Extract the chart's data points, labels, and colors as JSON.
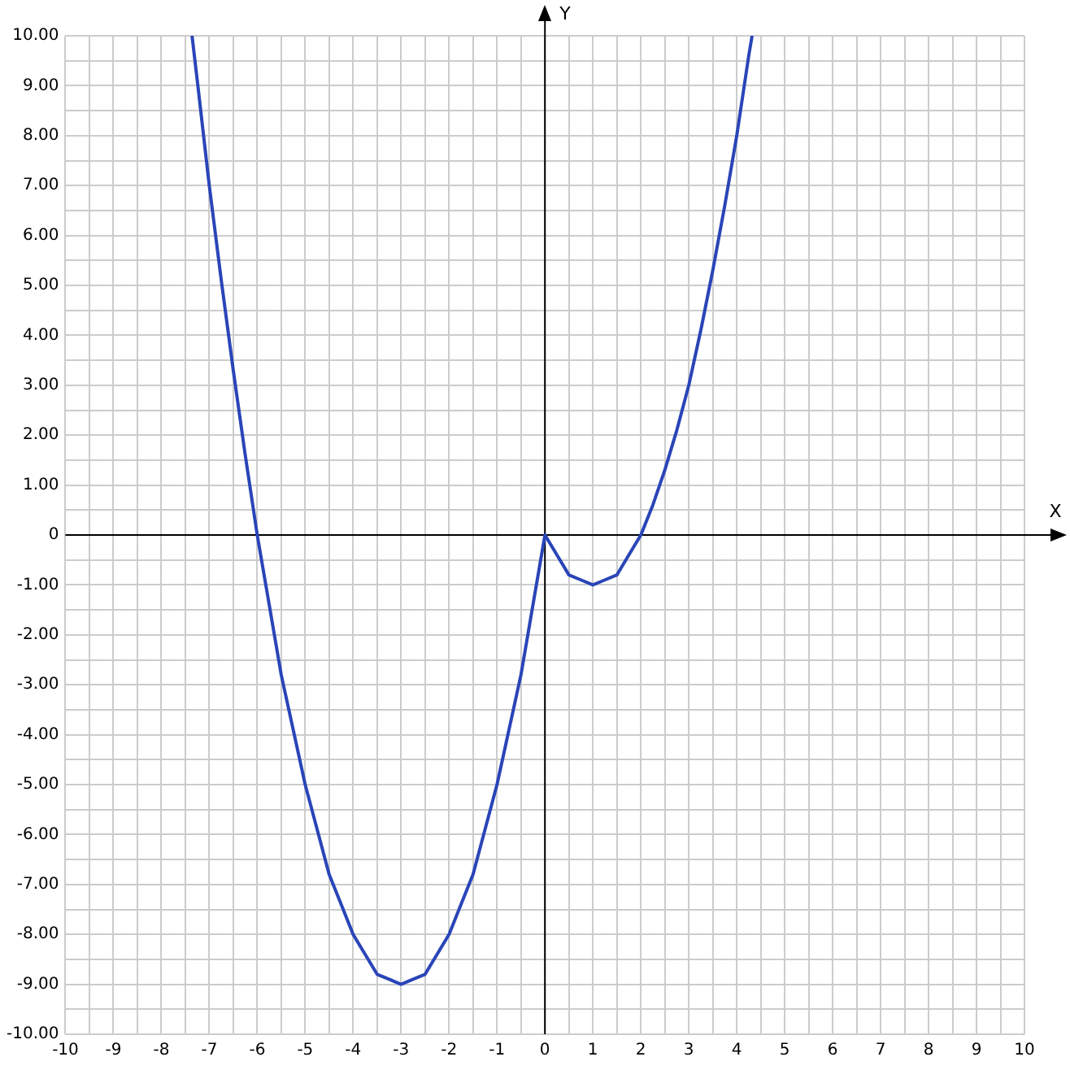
{
  "chart_data": {
    "type": "line",
    "xlabel": "X",
    "ylabel": "Y",
    "xlim": [
      -10,
      10
    ],
    "ylim": [
      -10,
      10
    ],
    "xticks": [
      -10,
      {
        "value": -9.5,
        "label": null
      },
      -9,
      {
        "value": -8.5,
        "label": null
      },
      -8,
      {
        "value": -7.5,
        "label": null
      },
      -7,
      {
        "value": -6.5,
        "label": null
      },
      -6,
      {
        "value": -5.5,
        "label": null
      },
      -5,
      {
        "value": -4.5,
        "label": null
      },
      -4,
      {
        "value": -3.5,
        "label": null
      },
      -3,
      {
        "value": -2.5,
        "label": null
      },
      -2,
      {
        "value": -1.5,
        "label": null
      },
      -1,
      {
        "value": -0.5,
        "label": null
      },
      0,
      {
        "value": 0.5,
        "label": null
      },
      1,
      {
        "value": 1.5,
        "label": null
      },
      2,
      {
        "value": 2.5,
        "label": null
      },
      3,
      {
        "value": 3.5,
        "label": null
      },
      4,
      {
        "value": 4.5,
        "label": null
      },
      5,
      {
        "value": 5.5,
        "label": null
      },
      6,
      {
        "value": 6.5,
        "label": null
      },
      7,
      {
        "value": 7.5,
        "label": null
      },
      8,
      {
        "value": 8.5,
        "label": null
      },
      9,
      {
        "value": 9.5,
        "label": null
      },
      10
    ],
    "yticks": [
      {
        "value": -10,
        "label": "-10.00"
      },
      {
        "value": -9.5,
        "label": null
      },
      {
        "value": -9,
        "label": "-9.00"
      },
      {
        "value": -8.5,
        "label": null
      },
      {
        "value": -8,
        "label": "-8.00"
      },
      {
        "value": -7.5,
        "label": null
      },
      {
        "value": -7,
        "label": "-7.00"
      },
      {
        "value": -6.5,
        "label": null
      },
      {
        "value": -6,
        "label": "-6.00"
      },
      {
        "value": -5.5,
        "label": null
      },
      {
        "value": -5,
        "label": "-5.00"
      },
      {
        "value": -4.5,
        "label": null
      },
      {
        "value": -4,
        "label": "-4.00"
      },
      {
        "value": -3.5,
        "label": null
      },
      {
        "value": -3,
        "label": "-3.00"
      },
      {
        "value": -2.5,
        "label": null
      },
      {
        "value": -2,
        "label": "-2.00"
      },
      {
        "value": -1.5,
        "label": null
      },
      {
        "value": -1,
        "label": "-1.00"
      },
      {
        "value": -0.5,
        "label": null
      },
      0,
      {
        "value": 0.5,
        "label": null
      },
      {
        "value": 1,
        "label": "1.00"
      },
      {
        "value": 1.5,
        "label": null
      },
      {
        "value": 2,
        "label": "2.00"
      },
      {
        "value": 2.5,
        "label": null
      },
      {
        "value": 3,
        "label": "3.00"
      },
      {
        "value": 3.5,
        "label": null
      },
      {
        "value": 4,
        "label": "4.00"
      },
      {
        "value": 4.5,
        "label": null
      },
      {
        "value": 5,
        "label": "5.00"
      },
      {
        "value": 5.5,
        "label": null
      },
      {
        "value": 6,
        "label": "6.00"
      },
      {
        "value": 6.5,
        "label": null
      },
      {
        "value": 7,
        "label": "7.00"
      },
      {
        "value": 7.5,
        "label": null
      },
      {
        "value": 8,
        "label": "8.00"
      },
      {
        "value": 8.5,
        "label": null
      },
      {
        "value": 9,
        "label": "9.00"
      },
      {
        "value": 9.5,
        "label": null
      },
      {
        "value": 10,
        "label": "10.00"
      }
    ],
    "grid": true,
    "legend": false,
    "marker": "none",
    "line_style": "solid",
    "series": [
      {
        "color": "#2a45b8",
        "x": [
          -7.36,
          -7.25,
          -7,
          -6.75,
          -6.5,
          -6.25,
          -6,
          -5.75,
          -5.5,
          -5.25,
          -5,
          -4.75,
          -4.5,
          -4.25,
          -4,
          -3.75,
          -3.5,
          -3.25,
          -3,
          -2.75,
          -2.5,
          -2.25,
          -2,
          -1.75,
          -1.5,
          -1.25,
          -1,
          -0.75,
          -0.5,
          -0.25,
          0,
          0.25,
          0.5,
          0.75,
          1,
          1.25,
          1.5,
          1.75,
          2,
          2.25,
          2.5,
          2.75,
          3,
          3.25,
          3.5,
          3.75,
          4,
          4.25,
          4.32
        ],
        "values": [
          10,
          9.1,
          7,
          5.1,
          3.3,
          1.6,
          0,
          -1.4,
          -2.8,
          -3.9,
          -5,
          -5.9,
          -6.8,
          -7.4,
          -8,
          -8.4,
          -8.8,
          -8.9,
          -9,
          -8.9,
          -8.8,
          -8.4,
          -8,
          -7.4,
          -6.8,
          -5.9,
          -5,
          -3.9,
          -2.8,
          -1.4,
          0,
          -0.4,
          -0.8,
          -0.9,
          -1,
          -0.9,
          -0.8,
          -0.4,
          0,
          0.6,
          1.3,
          2.1,
          3,
          4.1,
          5.3,
          6.6,
          8,
          9.6,
          10
        ]
      }
    ]
  }
}
